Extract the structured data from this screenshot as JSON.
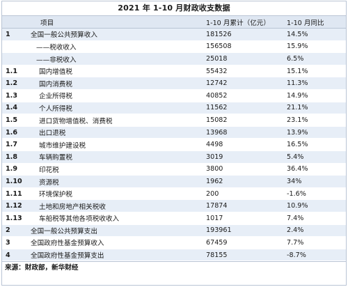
{
  "title": "2021 年 1-10 月财政收支数据",
  "header": {
    "no": "",
    "item": "项目",
    "value": "1-10 月累计（亿元）",
    "yoy": "1-10 月同比"
  },
  "rows": [
    {
      "no": "1",
      "item": "全国一般公共预算收入",
      "value": "181526",
      "yoy": "14.5%",
      "level": 1
    },
    {
      "no": "",
      "item": "——税收收入",
      "value": "156508",
      "yoy": "15.9%",
      "level": 2
    },
    {
      "no": "",
      "item": "——非税收入",
      "value": "25018",
      "yoy": "6.5%",
      "level": 2
    },
    {
      "no": "1.1",
      "item": "国内增值税",
      "value": "55432",
      "yoy": "15.1%",
      "level": 3
    },
    {
      "no": "1.2",
      "item": "国内消费税",
      "value": "12742",
      "yoy": "11.3%",
      "level": 3
    },
    {
      "no": "1.3",
      "item": "企业所得税",
      "value": "40852",
      "yoy": "14.9%",
      "level": 3
    },
    {
      "no": "1.4",
      "item": "个人所得税",
      "value": "11562",
      "yoy": "21.1%",
      "level": 3
    },
    {
      "no": "1.5",
      "item": "进口货物增值税、消费税",
      "value": "15082",
      "yoy": "23.1%",
      "level": 3
    },
    {
      "no": "1.6",
      "item": "出口退税",
      "value": "13968",
      "yoy": "13.9%",
      "level": 3
    },
    {
      "no": "1.7",
      "item": "城市维护建设税",
      "value": "4498",
      "yoy": "16.5%",
      "level": 3
    },
    {
      "no": "1.8",
      "item": "车辆购置税",
      "value": "3019",
      "yoy": "5.4%",
      "level": 3
    },
    {
      "no": "1.9",
      "item": "印花税",
      "value": "3800",
      "yoy": "36.4%",
      "level": 3
    },
    {
      "no": "1.10",
      "item": "资源税",
      "value": "1962",
      "yoy": "34%",
      "level": 3
    },
    {
      "no": "1.11",
      "item": "环境保护税",
      "value": "200",
      "yoy": "-1.6%",
      "level": 3
    },
    {
      "no": "1.12",
      "item": "土地和房地产相关税收",
      "value": "17874",
      "yoy": "10.9%",
      "level": 3
    },
    {
      "no": "1.13",
      "item": "车船税等其他各项税收收入",
      "value": "1017",
      "yoy": "7.4%",
      "level": 3
    },
    {
      "no": "2",
      "item": "全国一般公共预算支出",
      "value": "193961",
      "yoy": "2.4%",
      "level": 1
    },
    {
      "no": "3",
      "item": "全国政府性基金预算收入",
      "value": "67459",
      "yoy": "7.7%",
      "level": 1
    },
    {
      "no": "4",
      "item": "全国政府性基金预算支出",
      "value": "78155",
      "yoy": "-8.7%",
      "level": 1
    }
  ],
  "source": "来源：财政部，新华财经"
}
